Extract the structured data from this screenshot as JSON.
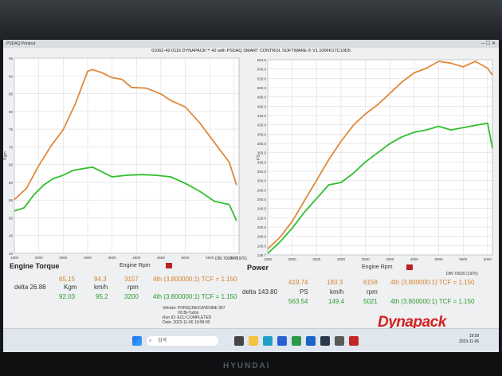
{
  "window": {
    "title": "PSDAQ Printout",
    "controls": "─  ☐  ✕"
  },
  "header": "01062-42-0116 DYNAPACK™ 42 with PSDAQ SMART CONTROL SOFTWARE ® V1.100FK17C10D5",
  "colors": {
    "orange": "#e0883a",
    "green": "#2fbf2f",
    "brand_red": "#d32020"
  },
  "chart_data": [
    {
      "type": "line",
      "title": "Engine Torque",
      "ylabel": "Kgm",
      "standard": "DIN 70020 (1976)",
      "ylim": [
        36,
        96
      ],
      "yticks": [
        "95",
        "90",
        "85",
        "80",
        "75",
        "70",
        "65",
        "60",
        "55",
        "50",
        "45",
        "40"
      ],
      "xlim": [
        1500,
        6100
      ],
      "xticks": [
        "1500",
        "2000",
        "2500",
        "3000",
        "3500",
        "4000",
        "4500",
        "5000",
        "5500",
        "6000"
      ],
      "series": [
        {
          "name": "orange",
          "x": [
            1500,
            1750,
            2000,
            2250,
            2500,
            2750,
            3000,
            3100,
            3300,
            3500,
            3700,
            3900,
            4200,
            4500,
            4700,
            5000,
            5300,
            5600,
            5900,
            6050
          ],
          "y": [
            52.5,
            56,
            63,
            69,
            74,
            82,
            92,
            92.5,
            91.5,
            90,
            89.5,
            87,
            86.8,
            85,
            83,
            81,
            76,
            70,
            64,
            57
          ]
        },
        {
          "name": "green",
          "x": [
            1500,
            1700,
            1900,
            2100,
            2300,
            2500,
            2700,
            2900,
            3100,
            3300,
            3500,
            3800,
            4100,
            4400,
            4700,
            5000,
            5300,
            5600,
            5900,
            6050
          ],
          "y": [
            49,
            50,
            54,
            57,
            59,
            60,
            61.5,
            62,
            62.5,
            61,
            59.5,
            60,
            60.2,
            60,
            59.5,
            57.5,
            55,
            52,
            51,
            46
          ]
        }
      ]
    },
    {
      "type": "line",
      "title": "Power",
      "ylabel": "PS",
      "standard": "DIN 70020 (1976)",
      "ylim": [
        136.7,
        563.5
      ],
      "yticks": [
        "563.5",
        "540.0",
        "520.0",
        "500.0",
        "480.0",
        "460.0",
        "440.0",
        "420.0",
        "400.0",
        "380.0",
        "360.0",
        "340.0",
        "320.0",
        "300.0",
        "280.0",
        "260.0",
        "240.0",
        "220.0",
        "200.0",
        "180.0",
        "160.0",
        "136.7"
      ],
      "xlim": [
        1500,
        6100
      ],
      "xticks": [
        "1500",
        "2000",
        "2500",
        "3000",
        "3500",
        "4000",
        "4500",
        "5000",
        "5500",
        "6000"
      ],
      "series": [
        {
          "name": "orange",
          "x": [
            1500,
            1750,
            2000,
            2250,
            2500,
            2750,
            3000,
            3250,
            3500,
            3750,
            4000,
            4250,
            4500,
            4750,
            5000,
            5250,
            5500,
            5750,
            6000,
            6100
          ],
          "y": [
            150,
            175,
            210,
            255,
            300,
            345,
            385,
            420,
            445,
            465,
            490,
            515,
            535,
            545,
            560,
            556,
            548,
            560,
            545,
            530
          ]
        },
        {
          "name": "green",
          "x": [
            1500,
            1750,
            2000,
            2250,
            2500,
            2750,
            3000,
            3250,
            3500,
            3750,
            4000,
            4250,
            4500,
            4750,
            5000,
            5250,
            5500,
            5750,
            6000,
            6100
          ],
          "y": [
            140,
            165,
            195,
            230,
            260,
            290,
            295,
            315,
            340,
            360,
            380,
            395,
            405,
            410,
            418,
            410,
            415,
            420,
            425,
            370
          ]
        }
      ]
    }
  ],
  "torque_panel": {
    "title": "Engine Torque",
    "rpm_label": "Engine Rpm",
    "din": "DIN 70020 (1976)",
    "row1": {
      "a": "65.15",
      "b": "94.3",
      "c": "3157",
      "d": "4th (3.800000:1)  TCF = 1.150"
    },
    "delta_label": "delta 26.88",
    "units": {
      "a": "Kgm",
      "b": "km/h",
      "c": "rpm"
    },
    "row2": {
      "a": "92.03",
      "b": "95.2",
      "c": "3200",
      "d": "4th (3.800000:1)  TCF = 1.150"
    }
  },
  "power_panel": {
    "title": "Power",
    "rpm_label": "Engine Rpm",
    "din": "DIN 70020 (1976)",
    "row1": {
      "a": "419.74",
      "b": "183.3",
      "c": "6158",
      "d": "4th (3.800000:1)  TCF = 1.150"
    },
    "delta_label": "delta 143.80",
    "units": {
      "a": "PS",
      "b": "km/h",
      "c": "rpm"
    },
    "row2": {
      "a": "563.54",
      "b": "149.4",
      "c": "5021",
      "d": "4th (3.800000:1)  TCF = 1.150"
    }
  },
  "info": {
    "vehicle_label": "Vehicle:",
    "vehicle": "PORSCHE/CAYENNE 957 V8 Bi-Turbo",
    "run_label": "Run ID:",
    "run": "ECU COMPLETED",
    "date_label": "Date:",
    "date": "2023-11-06 19:58:00"
  },
  "logo": "Dynapack",
  "taskbar": {
    "search": "검색",
    "time": "19:59",
    "date": "2023-11-06"
  },
  "monitor_brand": "HYUNDAI"
}
